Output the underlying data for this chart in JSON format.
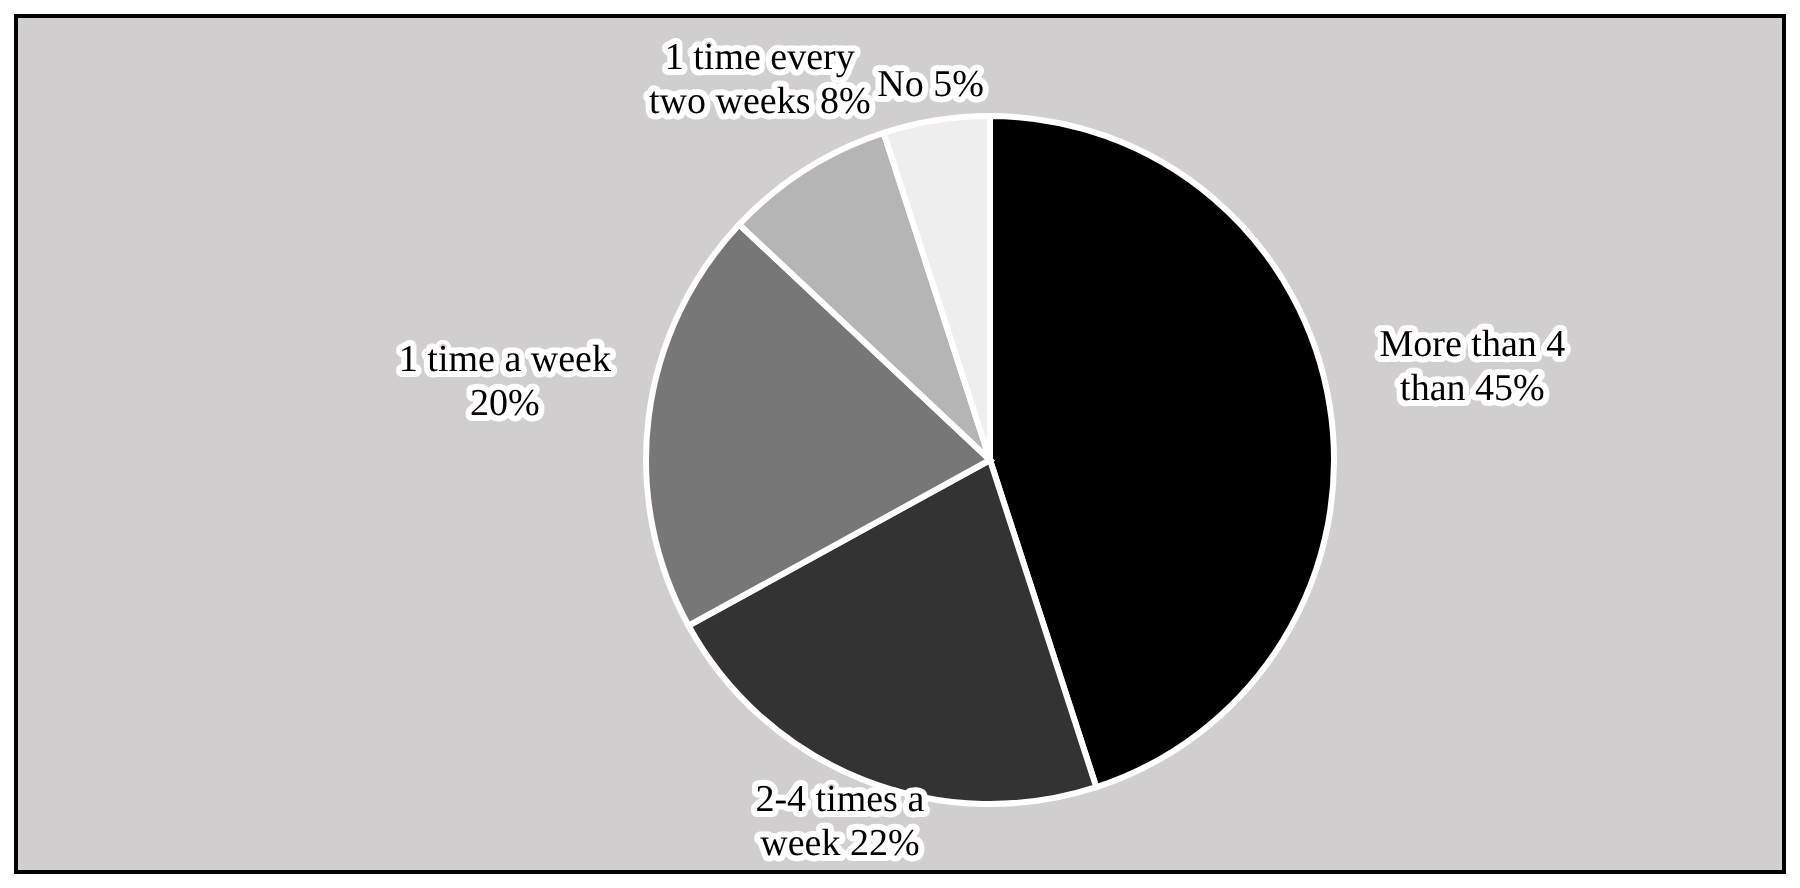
{
  "chart_data": {
    "type": "pie",
    "categories": [
      "More than 4 than",
      "2-4 times a week",
      "1 time a week",
      "1 time every two weeks",
      "No"
    ],
    "values": [
      45,
      22,
      20,
      8,
      5
    ],
    "value_labels": [
      "45%",
      "22%",
      "20%",
      "8%",
      "5%"
    ],
    "colors": [
      "#000000",
      "#333333",
      "#777777",
      "#b5b5b5",
      "#eeeeee"
    ]
  }
}
